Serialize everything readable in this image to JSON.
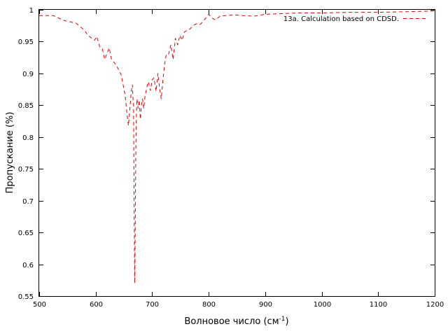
{
  "chart_data": {
    "type": "line",
    "title": "",
    "xlabel_main": "Волновое число (см",
    "xlabel_sup": "-1",
    "xlabel_end": ")",
    "ylabel": "Пропускание (%)",
    "xlim": [
      500,
      1200
    ],
    "ylim": [
      0.55,
      1.0
    ],
    "x_ticks": [
      500,
      600,
      700,
      800,
      900,
      1000,
      1100,
      1200
    ],
    "y_ticks": [
      0.55,
      0.6,
      0.65,
      0.7,
      0.75,
      0.8,
      0.85,
      0.9,
      0.95,
      1
    ],
    "y_tick_labels": [
      "0.55",
      "0.6",
      "0.65",
      "0.7",
      "0.75",
      "0.8",
      "0.85",
      "0.9",
      "0.95",
      "1"
    ],
    "grid": false,
    "legend_position": "top-right",
    "series": [
      {
        "name": "13a. Calculation based on CDSD.",
        "color": "#e00000",
        "dash": "dashed",
        "x": [
          500,
          525,
          532,
          545,
          565,
          580,
          586,
          592,
          598,
          602,
          607,
          612,
          616,
          620,
          624,
          628,
          632,
          637,
          641,
          645,
          649,
          652,
          655,
          658,
          661,
          663,
          665,
          666,
          667,
          668,
          669,
          670,
          671,
          672,
          673,
          675,
          677,
          679,
          681,
          683,
          685,
          687,
          690,
          693,
          697,
          700,
          703,
          707,
          710,
          713,
          716,
          719,
          722,
          725,
          729,
          733,
          737,
          741,
          745,
          749,
          753,
          757,
          762,
          767,
          772,
          778,
          785,
          793,
          800,
          806,
          812,
          820,
          830,
          845,
          860,
          880,
          900,
          930,
          960,
          1000,
          1050,
          1100,
          1150,
          1200
        ],
        "y": [
          0.991,
          0.991,
          0.988,
          0.983,
          0.979,
          0.968,
          0.96,
          0.956,
          0.952,
          0.958,
          0.942,
          0.938,
          0.922,
          0.932,
          0.94,
          0.922,
          0.918,
          0.912,
          0.905,
          0.898,
          0.88,
          0.866,
          0.84,
          0.818,
          0.85,
          0.873,
          0.882,
          0.86,
          0.85,
          0.7,
          0.57,
          0.65,
          0.78,
          0.83,
          0.86,
          0.845,
          0.858,
          0.828,
          0.85,
          0.86,
          0.845,
          0.862,
          0.876,
          0.887,
          0.873,
          0.89,
          0.893,
          0.872,
          0.9,
          0.878,
          0.86,
          0.89,
          0.915,
          0.93,
          0.93,
          0.945,
          0.922,
          0.955,
          0.945,
          0.96,
          0.952,
          0.965,
          0.968,
          0.97,
          0.975,
          0.978,
          0.977,
          0.985,
          0.993,
          0.987,
          0.984,
          0.99,
          0.991,
          0.992,
          0.991,
          0.99,
          0.993,
          0.994,
          0.995,
          0.995,
          0.996,
          0.996,
          0.997,
          0.998
        ]
      }
    ]
  }
}
